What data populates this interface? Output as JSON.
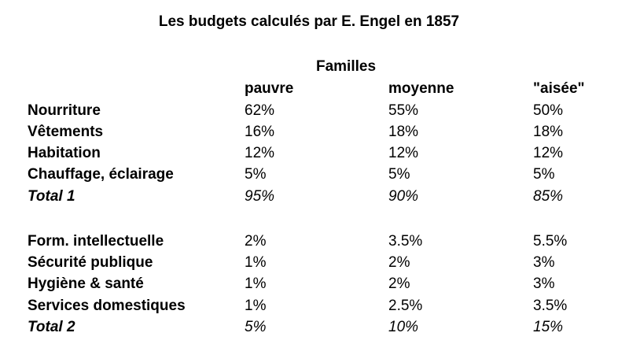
{
  "title": "Les budgets calculés par E. Engel en 1857",
  "group_header": "Familles",
  "columns": [
    "pauvre",
    "moyenne",
    "\"aisée\""
  ],
  "table1": [
    {
      "label": "Nourriture",
      "values": [
        "62%",
        "55%",
        "50%"
      ]
    },
    {
      "label": "Vêtements",
      "values": [
        "16%",
        "18%",
        "18%"
      ]
    },
    {
      "label": "Habitation",
      "values": [
        "12%",
        "12%",
        "12%"
      ]
    },
    {
      "label": "Chauffage, éclairage",
      "values": [
        "5%",
        "5%",
        "5%"
      ]
    },
    {
      "label": "Total 1",
      "values": [
        "95%",
        "90%",
        "85%"
      ]
    }
  ],
  "table2": [
    {
      "label": "Form. intellectuelle",
      "values": [
        "2%",
        "3.5%",
        "5.5%"
      ]
    },
    {
      "label": "Sécurité publique",
      "values": [
        "1%",
        "2%",
        "3%"
      ]
    },
    {
      "label": "Hygiène & santé",
      "values": [
        "1%",
        "2%",
        "3%"
      ]
    },
    {
      "label": "Services domestiques",
      "values": [
        "1%",
        "2.5%",
        "3.5%"
      ]
    },
    {
      "label": "Total 2",
      "values": [
        "5%",
        "10%",
        "15%"
      ]
    }
  ]
}
